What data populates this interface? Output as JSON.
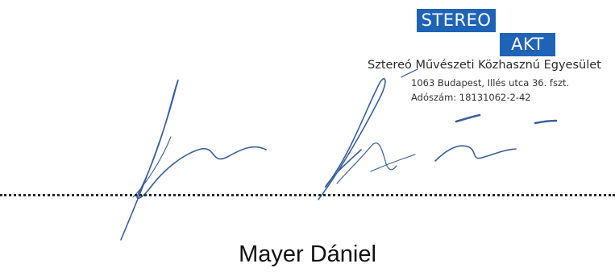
{
  "stamp": {
    "badge_line1": "STEREO",
    "badge_line2": "AKT",
    "organization": "Sztereó Művészeti Közhasznú Egyesület",
    "address": "1063 Budapest, Illés utca 36. fszt.",
    "tax_number": "Adószám: 18131062-2-42",
    "color": "#1e63b6"
  },
  "signature": {
    "ink_color": "#3a5f9a"
  },
  "signer": {
    "name": "Mayer Dániel"
  }
}
